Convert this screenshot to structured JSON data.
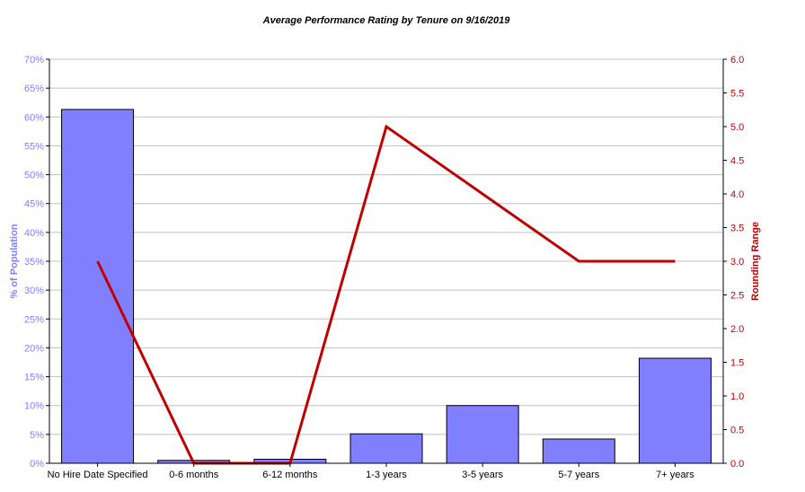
{
  "chart_data": {
    "type": "bar+line",
    "title": "Average Performance Rating by Tenure on 9/16/2019",
    "categories": [
      "No Hire Date Specified",
      "0-6 months",
      "6-12 months",
      "1-3 years",
      "3-5 years",
      "5-7 years",
      "7+ years"
    ],
    "series": [
      {
        "name": "% of Population",
        "type": "bar",
        "axis": "left",
        "color": "#8080ff",
        "values": [
          61.3,
          0.5,
          0.7,
          5.1,
          10.0,
          4.2,
          18.2
        ]
      },
      {
        "name": "Rounding Range",
        "type": "line",
        "axis": "right",
        "color": "#c00000",
        "values": [
          3,
          0,
          0,
          5,
          4,
          3,
          3
        ]
      }
    ],
    "ylabel_left": "% of Population",
    "ylabel_right": "Rounding Range",
    "ylim_left": [
      0,
      70
    ],
    "ylim_right": [
      0,
      6
    ],
    "yticks_left": [
      "0%",
      "5%",
      "10%",
      "15%",
      "20%",
      "25%",
      "30%",
      "35%",
      "40%",
      "45%",
      "50%",
      "55%",
      "60%",
      "65%",
      "70%"
    ],
    "yticks_right": [
      "0.0",
      "0.5",
      "1.0",
      "1.5",
      "2.0",
      "2.5",
      "3.0",
      "3.5",
      "4.0",
      "4.5",
      "5.0",
      "5.5",
      "6.0"
    ],
    "grid": true,
    "left_axis_color": "#8080ff",
    "right_axis_color": "#c00000"
  }
}
